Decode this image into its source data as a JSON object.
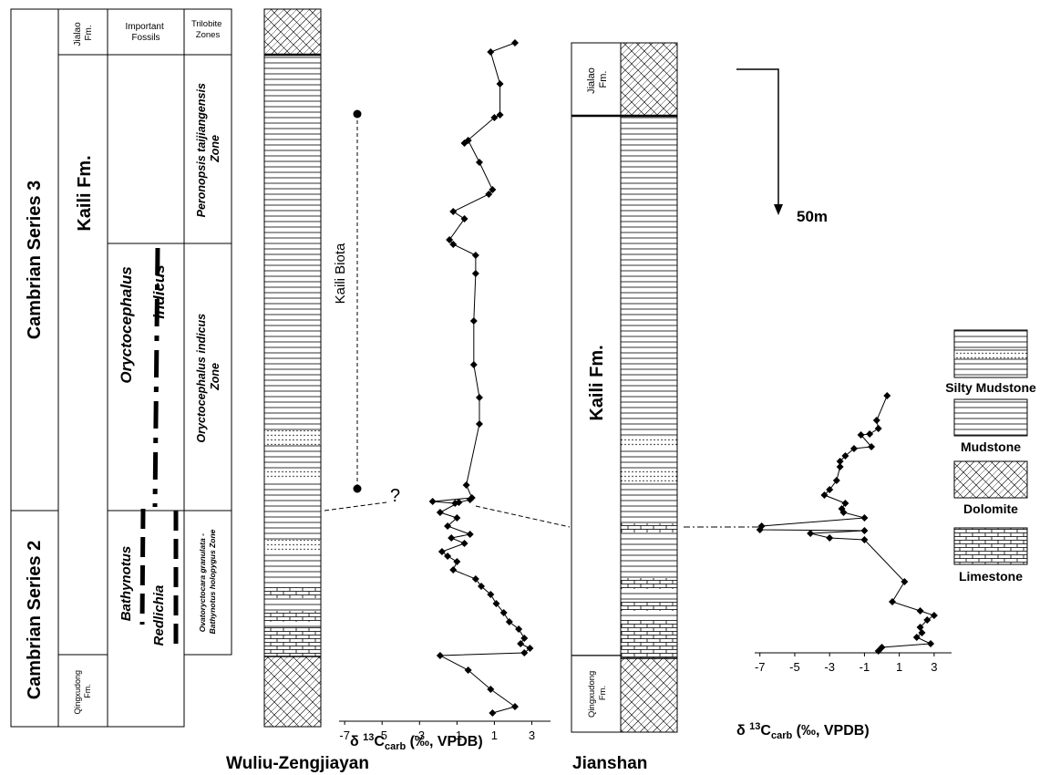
{
  "chart_data": [
    {
      "type": "line",
      "name": "Wuliu-Zengjiayan",
      "xlabel": "δ 13C carb (‰, VPDB)",
      "x_ticks": [
        -7,
        -5,
        -3,
        -1,
        1,
        3
      ],
      "xlim": [
        -7.3,
        4.0
      ],
      "points": [
        [
          2.1,
          47
        ],
        [
          0.8,
          57
        ],
        [
          1.3,
          92
        ],
        [
          1.3,
          126
        ],
        [
          1.0,
          129
        ],
        [
          -0.6,
          157
        ],
        [
          -0.4,
          154
        ],
        [
          0.2,
          178
        ],
        [
          0.9,
          208
        ],
        [
          0.7,
          213
        ],
        [
          -1.2,
          232
        ],
        [
          -0.6,
          240
        ],
        [
          -1.4,
          263
        ],
        [
          -1.2,
          268
        ],
        [
          0.0,
          280
        ],
        [
          0.0,
          300
        ],
        [
          -0.1,
          352
        ],
        [
          -0.1,
          400
        ],
        [
          0.2,
          436
        ],
        [
          0.2,
          465
        ],
        [
          -0.5,
          532
        ],
        [
          -0.2,
          546
        ],
        [
          -2.3,
          550
        ],
        [
          -1.1,
          552
        ],
        [
          -0.3,
          548
        ],
        [
          -0.9,
          551
        ],
        [
          -1.9,
          562
        ],
        [
          -1.0,
          568
        ],
        [
          -1.5,
          577
        ],
        [
          -0.3,
          586
        ],
        [
          -1.3,
          590
        ],
        [
          -0.6,
          596
        ],
        [
          -1.8,
          605
        ],
        [
          -1.5,
          610
        ],
        [
          -1.0,
          616
        ],
        [
          -1.2,
          625
        ],
        [
          0.0,
          635
        ],
        [
          0.3,
          643
        ],
        [
          0.8,
          652
        ],
        [
          1.1,
          662
        ],
        [
          1.5,
          672
        ],
        [
          1.8,
          682
        ],
        [
          2.3,
          690
        ],
        [
          2.6,
          700
        ],
        [
          2.4,
          706
        ],
        [
          2.9,
          711
        ],
        [
          2.6,
          716
        ],
        [
          -1.9,
          719
        ],
        [
          -0.4,
          735
        ],
        [
          0.8,
          756
        ],
        [
          2.1,
          775
        ],
        [
          0.9,
          782
        ]
      ]
    },
    {
      "type": "line",
      "name": "Jianshan",
      "xlabel": "δ 13C carb (‰, VPDB)",
      "x_ticks": [
        -7,
        -5,
        -3,
        -1,
        1,
        3
      ],
      "xlim": [
        -7.3,
        4.0
      ],
      "points": [
        [
          0.3,
          434
        ],
        [
          -0.3,
          461
        ],
        [
          -0.2,
          470
        ],
        [
          -0.7,
          476
        ],
        [
          -1.2,
          477
        ],
        [
          -0.6,
          490
        ],
        [
          -1.6,
          492
        ],
        [
          -2.1,
          500
        ],
        [
          -2.4,
          506
        ],
        [
          -2.4,
          512
        ],
        [
          -2.6,
          527
        ],
        [
          -3.0,
          537
        ],
        [
          -3.3,
          543
        ],
        [
          -2.1,
          552
        ],
        [
          -2.3,
          558
        ],
        [
          -2.2,
          562
        ],
        [
          -1.0,
          568
        ],
        [
          -6.9,
          577
        ],
        [
          -7.0,
          581
        ],
        [
          -1.0,
          582
        ],
        [
          -4.1,
          585
        ],
        [
          -3.0,
          590
        ],
        [
          -1.0,
          592
        ],
        [
          1.3,
          638
        ],
        [
          0.6,
          660
        ],
        [
          2.2,
          670
        ],
        [
          3.0,
          675
        ],
        [
          2.6,
          680
        ],
        [
          2.2,
          688
        ],
        [
          2.3,
          694
        ],
        [
          2.0,
          699
        ],
        [
          2.8,
          706
        ],
        [
          0.0,
          710
        ],
        [
          -0.2,
          714
        ]
      ]
    }
  ],
  "left_column": {
    "header_fossils": "Important\nFossils",
    "header_zones": "Trilobite\nZones",
    "series3": "Cambrian Series 3",
    "series2": "Cambrian Series 2",
    "jialao": "Jialao\nFm.",
    "kaili": "Kaili Fm.",
    "qingxudong": "Qingxudong\nFm.",
    "fossil_oryctocephalus": "Oryctocephalus\nindicus",
    "fossil_bathynotus": "Bathynotus",
    "fossil_redlichia": "Redlichia",
    "zone_peronopsis": "Peronopsis taijiangensis\nZone",
    "zone_oryctocephalus": "Oryctocephalus indicus\nZone",
    "zone_ovatoryctocara": "Ovatoryctocara granulata -\nBathynotus holopygus Zone"
  },
  "wuliu": {
    "name": "Wuliu-Zengjiayan",
    "biota": "Kaili Biota",
    "question": "?",
    "axis_label_prefix": "δ ",
    "axis_label_sup": "13",
    "axis_label_main": "C",
    "axis_label_sub": "carb",
    "axis_label_rest": " (‰, VPDB)"
  },
  "jianshan": {
    "name": "Jianshan",
    "jialao": "Jialao\nFm.",
    "kaili": "Kaili Fm.",
    "qingxudong": "Qingxudong\nFm.",
    "axis_label_prefix": "δ ",
    "axis_label_sup": "13",
    "axis_label_main": "C",
    "axis_label_sub": "carb",
    "axis_label_rest": " (‰, VPDB)"
  },
  "scale": {
    "label": "50m"
  },
  "legend": {
    "items": [
      "Silty Mudstone",
      "Mudstone",
      "Dolomite",
      "Limestone"
    ]
  }
}
